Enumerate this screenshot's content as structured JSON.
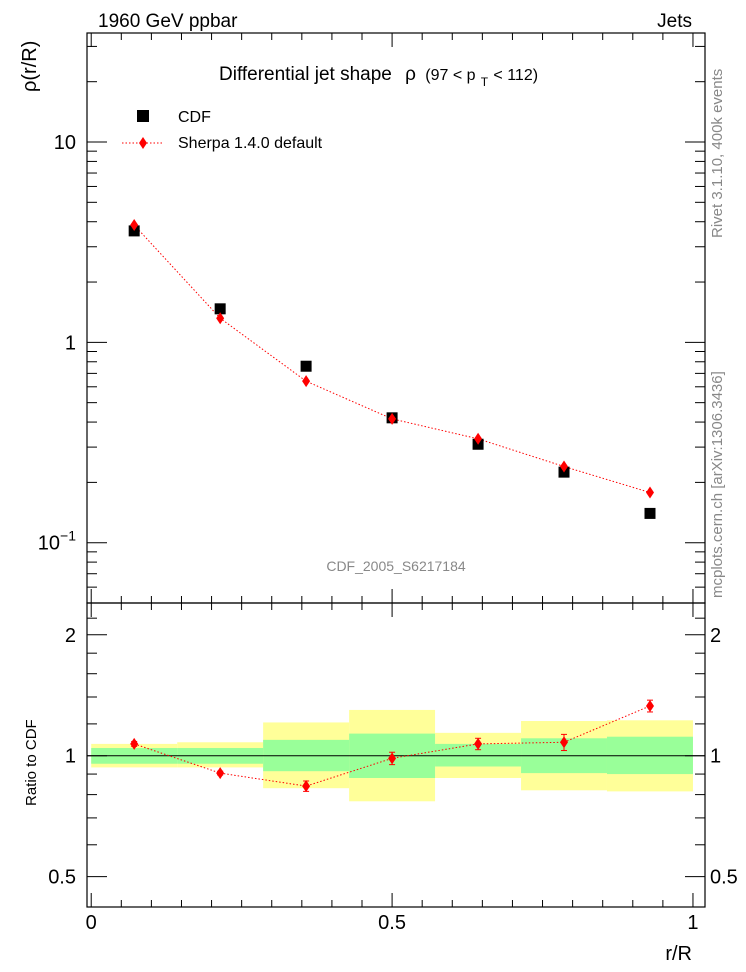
{
  "header": {
    "left": "1960 GeV ppbar",
    "right": "Jets"
  },
  "side_labels": {
    "rivet": "Rivet 3.1.10,  400k events",
    "mcplots": "mcplots.cern.ch [arXiv:1306.3436]"
  },
  "chart_data": {
    "type": "scatter",
    "title_main": "Differential jet shape",
    "title_rho": "ρ",
    "title_range_a": "(97 < p",
    "title_range_sub": "T",
    "title_range_b": " < 112)",
    "analysis_tag": "CDF_2005_S6217184",
    "xlabel": "r/R",
    "top_ylabel": "ρ(r/R)",
    "ratio_ylabel": "Ratio to CDF",
    "xlim": [
      -0.007,
      1.02
    ],
    "top_ylim": [
      0.05,
      35
    ],
    "top_yscale": "log",
    "ratio_ylim": [
      0.42,
      2.4
    ],
    "ratio_yscale": "log",
    "x_ticks": [
      {
        "value": 0,
        "label": "0"
      },
      {
        "value": 0.5,
        "label": "0.5"
      },
      {
        "value": 1,
        "label": "1"
      }
    ],
    "top_y_ticks": [
      {
        "value": 0.1,
        "label": "10",
        "sup": "−1"
      },
      {
        "value": 1,
        "label": "1",
        "sup": ""
      },
      {
        "value": 10,
        "label": "10",
        "sup": ""
      }
    ],
    "ratio_y_ticks": [
      {
        "value": 0.5,
        "label": "0.5"
      },
      {
        "value": 1,
        "label": "1"
      },
      {
        "value": 2,
        "label": "2"
      }
    ],
    "legend": [
      {
        "name": "CDF",
        "marker": "square",
        "color": "#000000"
      },
      {
        "name": "Sherpa 1.4.0 default",
        "marker": "diamond",
        "color": "#ff0000"
      }
    ],
    "x_centers": [
      0.0714,
      0.2143,
      0.3571,
      0.5,
      0.6429,
      0.7857,
      0.9286
    ],
    "bin_edges": [
      0,
      0.1429,
      0.2857,
      0.4286,
      0.5714,
      0.7143,
      0.8571,
      1.0
    ],
    "series": [
      {
        "name": "CDF",
        "values": [
          3.6,
          1.47,
          0.76,
          0.42,
          0.31,
          0.225,
          0.14
        ]
      },
      {
        "name": "Sherpa 1.4.0 default",
        "values": [
          3.85,
          1.32,
          0.64,
          0.415,
          0.33,
          0.24,
          0.178
        ]
      }
    ],
    "ratio": {
      "values": [
        1.07,
        0.905,
        0.84,
        0.985,
        1.07,
        1.08,
        1.33
      ],
      "errors": [
        0.015,
        0.01,
        0.025,
        0.035,
        0.035,
        0.05,
        0.045
      ]
    },
    "band_inner": [
      {
        "lo": 0.955,
        "hi": 1.045
      },
      {
        "lo": 0.955,
        "hi": 1.045
      },
      {
        "lo": 0.915,
        "hi": 1.095
      },
      {
        "lo": 0.88,
        "hi": 1.135
      },
      {
        "lo": 0.94,
        "hi": 1.07
      },
      {
        "lo": 0.905,
        "hi": 1.105
      },
      {
        "lo": 0.9,
        "hi": 1.115
      }
    ],
    "band_outer": [
      {
        "lo": 0.935,
        "hi": 1.07
      },
      {
        "lo": 0.935,
        "hi": 1.08
      },
      {
        "lo": 0.83,
        "hi": 1.21
      },
      {
        "lo": 0.77,
        "hi": 1.3
      },
      {
        "lo": 0.88,
        "hi": 1.14
      },
      {
        "lo": 0.82,
        "hi": 1.22
      },
      {
        "lo": 0.815,
        "hi": 1.225
      }
    ],
    "colors": {
      "data": "#000000",
      "mc": "#ff0000",
      "band_inner": "#99ff99",
      "band_outer": "#ffff99",
      "tag": "#888888"
    }
  }
}
